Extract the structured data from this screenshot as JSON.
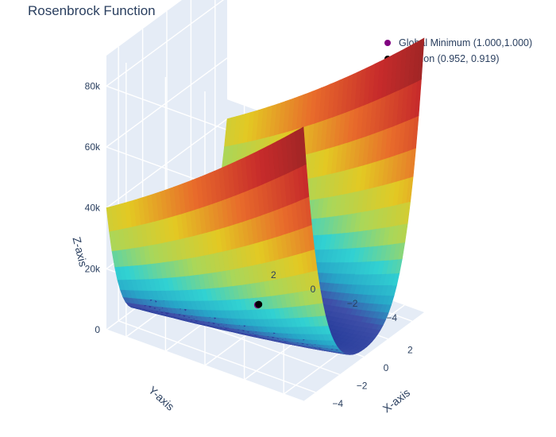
{
  "chart_data": {
    "type": "surface3d",
    "title": "Rosenbrock Function",
    "function": "rosenbrock",
    "x_range": [
      -5,
      5
    ],
    "y_range": [
      -5,
      5
    ],
    "z_range": [
      0,
      90000
    ],
    "xlabel": "X-axis",
    "ylabel": "Y-axis",
    "zlabel": "Z-axis",
    "x_ticks": [
      "−4",
      "−2",
      "0",
      "2"
    ],
    "y_ticks": [
      "−4",
      "−2",
      "0",
      "2"
    ],
    "z_ticks": [
      "0",
      "20k",
      "40k",
      "60k",
      "80k"
    ],
    "colorscale": [
      "#313695",
      "#2a3f9d",
      "#3f4fa8",
      "#27a6c8",
      "#31d2d2",
      "#a9d75a",
      "#e3c923",
      "#e86b2b",
      "#c72b2b",
      "#8e2323"
    ],
    "grid": true,
    "legend_position": "top-right",
    "points": [
      {
        "name": "Global Minimum (1.000,1.000)",
        "x": 1.0,
        "y": 1.0,
        "z": 0,
        "color": "#800080"
      },
      {
        "name": "Solution (0.952, 0.919)",
        "x": 0.952,
        "y": 0.919,
        "z": 0.0023,
        "color": "#000000"
      }
    ]
  }
}
